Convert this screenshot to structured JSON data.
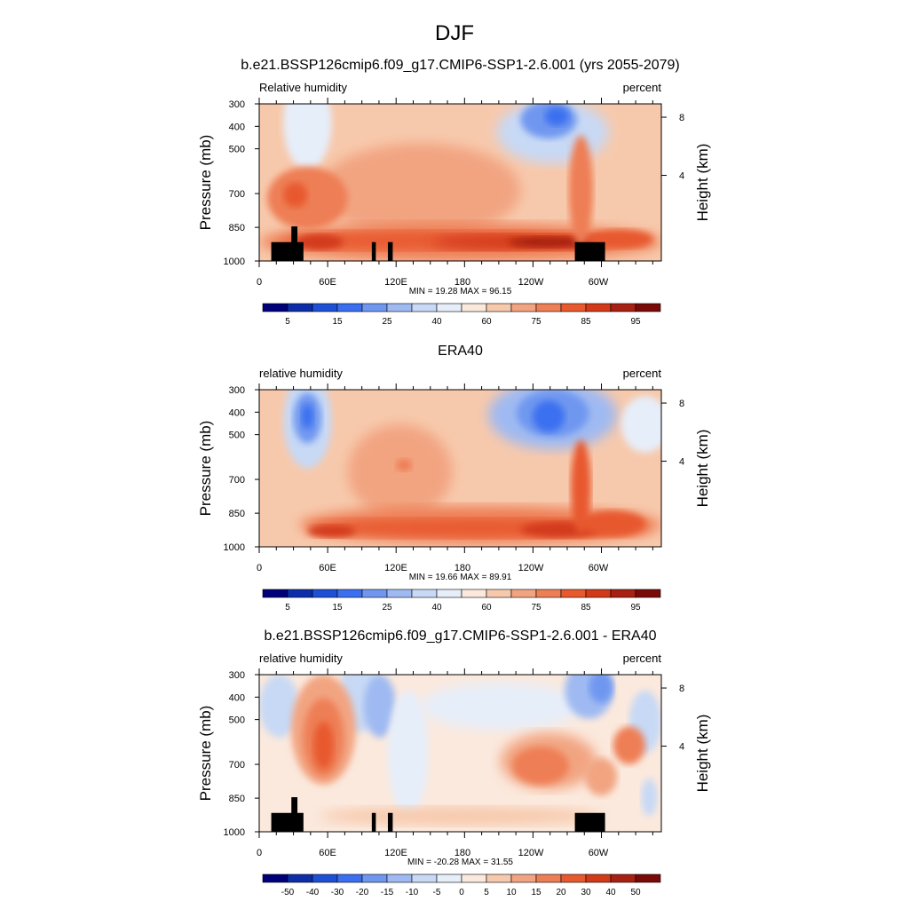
{
  "figure": {
    "title": "DJF"
  },
  "chart_data": [
    {
      "type": "heatmap",
      "title": "b.e21.BSSP126cmip6.f09_g17.CMIP6-SSP1-2.6.001 (yrs 2055-2079)",
      "variable_label": "Relative humidity",
      "units_label": "percent",
      "ylabel": "Pressure (mb)",
      "ylabel_right": "Height (km)",
      "x_ticks": [
        "0",
        "60E",
        "120E",
        "180",
        "120W",
        "60W"
      ],
      "y_ticks": [
        "300",
        "400",
        "500",
        "700",
        "850",
        "1000"
      ],
      "height_ticks": [
        "8",
        "4"
      ],
      "stats": "MIN =  19.28  MAX =  96.15",
      "min": 19.28,
      "max": 96.15,
      "colorbar_labels": [
        "5",
        "15",
        "25",
        "40",
        "60",
        "75",
        "85",
        "95"
      ],
      "colorbar_colors": [
        "#00007a",
        "#0d2ea8",
        "#1e50d6",
        "#3b6ff0",
        "#6f97f0",
        "#9fbaf2",
        "#c7d9f5",
        "#e6eefa",
        "#fbe9dd",
        "#f7c9ac",
        "#f2a481",
        "#ee7e55",
        "#e8592d",
        "#d33a1a",
        "#a82011",
        "#7a0a08"
      ],
      "has_topography": true
    },
    {
      "type": "heatmap",
      "title": "ERA40",
      "variable_label": "relative humidity",
      "units_label": "percent",
      "ylabel": "Pressure (mb)",
      "ylabel_right": "Height (km)",
      "x_ticks": [
        "0",
        "60E",
        "120E",
        "180",
        "120W",
        "60W"
      ],
      "y_ticks": [
        "300",
        "400",
        "500",
        "700",
        "850",
        "1000"
      ],
      "height_ticks": [
        "8",
        "4"
      ],
      "stats": "MIN =  19.66  MAX =  89.91",
      "min": 19.66,
      "max": 89.91,
      "colorbar_labels": [
        "5",
        "15",
        "25",
        "40",
        "60",
        "75",
        "85",
        "95"
      ],
      "colorbar_colors": [
        "#00007a",
        "#0d2ea8",
        "#1e50d6",
        "#3b6ff0",
        "#6f97f0",
        "#9fbaf2",
        "#c7d9f5",
        "#e6eefa",
        "#fbe9dd",
        "#f7c9ac",
        "#f2a481",
        "#ee7e55",
        "#e8592d",
        "#d33a1a",
        "#a82011",
        "#7a0a08"
      ],
      "has_topography": false
    },
    {
      "type": "heatmap",
      "title": "b.e21.BSSP126cmip6.f09_g17.CMIP6-SSP1-2.6.001 - ERA40",
      "variable_label": "relative humidity",
      "units_label": "percent",
      "ylabel": "Pressure (mb)",
      "ylabel_right": "Height (km)",
      "x_ticks": [
        "0",
        "60E",
        "120E",
        "180",
        "120W",
        "60W"
      ],
      "y_ticks": [
        "300",
        "400",
        "500",
        "700",
        "850",
        "1000"
      ],
      "height_ticks": [
        "8",
        "4"
      ],
      "stats": "MIN = -20.28  MAX =  31.55",
      "min": -20.28,
      "max": 31.55,
      "colorbar_labels": [
        "-50",
        "-40",
        "-30",
        "-20",
        "-15",
        "-10",
        "-5",
        "0",
        "5",
        "10",
        "15",
        "20",
        "30",
        "40",
        "50"
      ],
      "colorbar_colors": [
        "#00007a",
        "#0d2ea8",
        "#1e50d6",
        "#3b6ff0",
        "#6f97f0",
        "#9fbaf2",
        "#c7d9f5",
        "#e6eefa",
        "#fbe9dd",
        "#f7c9ac",
        "#f2a481",
        "#ee7e55",
        "#e8592d",
        "#d33a1a",
        "#a82011",
        "#7a0a08"
      ],
      "has_topography": true
    }
  ]
}
